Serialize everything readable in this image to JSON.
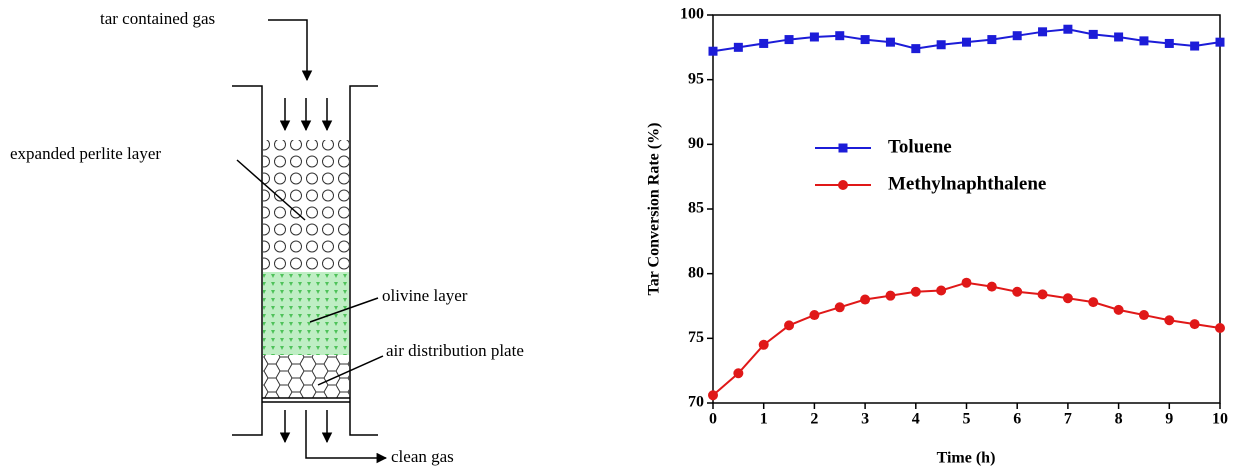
{
  "diagram": {
    "labels": [
      "tar contained gas",
      "expanded perlite layer",
      "olivine layer",
      "air distribution plate",
      "clean gas"
    ]
  },
  "chart_data": {
    "type": "line",
    "x_label": "Time (h)",
    "y_label": "Tar Conversion Rate (%)",
    "x": [
      0,
      0.5,
      1,
      1.5,
      2,
      2.5,
      3,
      3.5,
      4,
      4.5,
      5,
      5.5,
      6,
      6.5,
      7,
      7.5,
      8,
      8.5,
      9,
      9.5,
      10
    ],
    "series": [
      {
        "name": "Toluene",
        "color": "#1c1cd8",
        "marker": "square",
        "values": [
          97.2,
          97.5,
          97.8,
          98.1,
          98.3,
          98.4,
          98.1,
          97.9,
          97.4,
          97.7,
          97.9,
          98.1,
          98.4,
          98.7,
          98.9,
          98.5,
          98.3,
          98.0,
          97.8,
          97.6,
          97.9
        ]
      },
      {
        "name": "Methylnaphthalene",
        "color": "#e01818",
        "marker": "circle",
        "values": [
          70.6,
          72.3,
          74.5,
          76.0,
          76.8,
          77.4,
          78.0,
          78.3,
          78.6,
          78.7,
          79.3,
          79.0,
          78.6,
          78.4,
          78.1,
          77.8,
          77.2,
          76.8,
          76.4,
          76.1,
          75.8
        ]
      }
    ],
    "xlim": [
      0,
      10
    ],
    "xticks": [
      0,
      1,
      2,
      3,
      4,
      5,
      6,
      7,
      8,
      9,
      10
    ],
    "ylim": [
      70,
      100
    ],
    "yticks": [
      70,
      75,
      80,
      85,
      90,
      95,
      100
    ],
    "grid": false,
    "legend": "center-left"
  }
}
